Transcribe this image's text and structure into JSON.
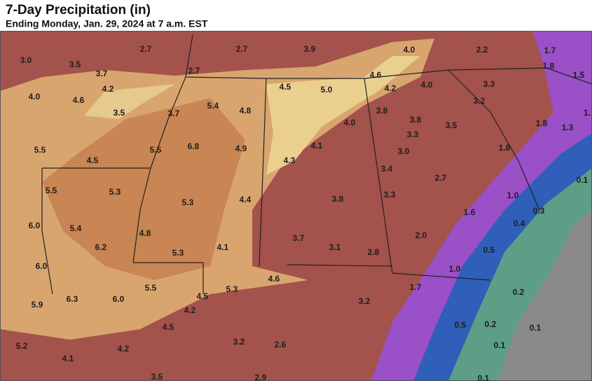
{
  "header": {
    "title": "7-Day Precipitation (in)",
    "subtitle": "Ending Monday, Jan. 29, 2024 at 7 a.m. EST"
  },
  "labels": [
    "3.0",
    "3.5",
    "2.7",
    "2.7",
    "3.9",
    "4.0",
    "2.2",
    "1.7",
    "1.8",
    "1.5",
    "3.7",
    "2.7",
    "4.2",
    "4.5",
    "5.0",
    "4.6",
    "4.2",
    "4.0",
    "3.3",
    "4.0",
    "4.6",
    "3.2",
    "3.5",
    "3.7",
    "5.4",
    "4.8",
    "3.8",
    "3.8",
    "1.8",
    "1.3",
    "1.",
    "4.0",
    "3.5",
    "3.3",
    "5.5",
    "6.8",
    "4.9",
    "4.1",
    "3.0",
    "1.8",
    "5.5",
    "4.5",
    "4.3",
    "3.4",
    "2.7",
    "0.1",
    "5.5",
    "5.3",
    "3.3",
    "1.0",
    "5.3",
    "4.4",
    "3.8",
    "1.6",
    "0.3",
    "6.0",
    "5.4",
    "4.8",
    "2.0",
    "0.4",
    "3.7",
    "6.2",
    "5.3",
    "4.1",
    "3.1",
    "2.8",
    "0.5",
    "6.0",
    "1.0",
    "1.7",
    "5.5",
    "4.5",
    "5.3",
    "4.6",
    "0.2",
    "5.9",
    "6.3",
    "6.0",
    "4.2",
    "3.2",
    "4.5",
    "0.5",
    "0.2",
    "0.1",
    "5.2",
    "4.2",
    "3.2",
    "2.6",
    "0.1",
    "4.1",
    "3.5",
    "2.9",
    "0.1"
  ]
}
